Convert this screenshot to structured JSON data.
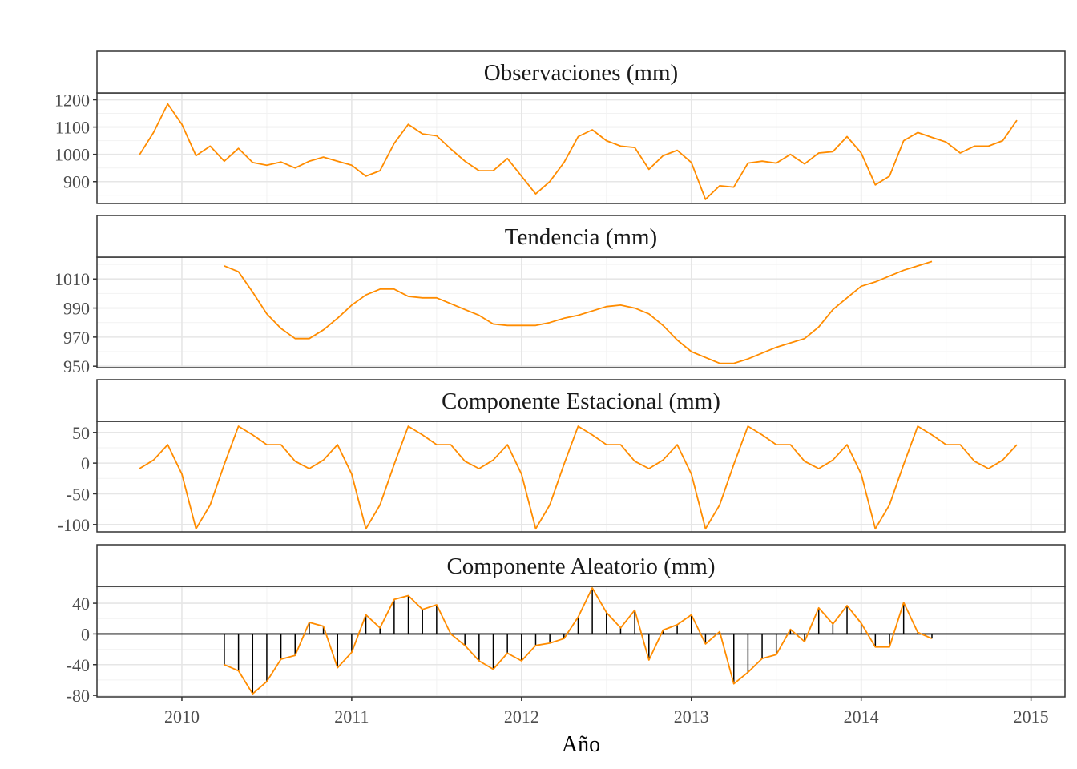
{
  "chart_data": {
    "type": "line",
    "xlabel": "Año",
    "x_ticks": [
      "2010",
      "2011",
      "2012",
      "2013",
      "2014",
      "2015"
    ],
    "x_range": [
      2009.5,
      2015.2
    ],
    "line_color": "#FF8C00",
    "panels": [
      {
        "title": "Observaciones (mm)",
        "x_start": 2009.75,
        "ylim": [
          820,
          1225
        ],
        "y_ticks": [
          "900",
          "1000",
          "1100",
          "1200"
        ],
        "values": [
          998,
          1080,
          1185,
          1110,
          995,
          1030,
          975,
          1022,
          970,
          960,
          972,
          950,
          975,
          990,
          975,
          960,
          920,
          940,
          1040,
          1110,
          1075,
          1068,
          1020,
          975,
          940,
          940,
          985,
          920,
          855,
          900,
          970,
          1065,
          1090,
          1050,
          1030,
          1025,
          945,
          995,
          1015,
          970,
          835,
          885,
          880,
          968,
          975,
          968,
          1000,
          965,
          1005,
          1010,
          1065,
          1005,
          888,
          920,
          1050,
          1080,
          1062,
          1045,
          1005,
          1030,
          1030,
          1050,
          1125
        ]
      },
      {
        "title": "Tendencia (mm)",
        "x_start": 2010.25,
        "ylim": [
          949,
          1025
        ],
        "y_ticks": [
          "950",
          "970",
          "990",
          "1010"
        ],
        "values": [
          1019,
          1015,
          1001,
          986,
          976,
          969,
          969,
          975,
          983,
          992,
          999,
          1003,
          1003,
          998,
          997,
          997,
          993,
          989,
          985,
          979,
          978,
          978,
          978,
          980,
          983,
          985,
          988,
          991,
          992,
          990,
          986,
          978,
          968,
          960,
          956,
          952,
          952,
          955,
          959,
          963,
          966,
          969,
          977,
          989,
          997,
          1005,
          1008,
          1012,
          1016,
          1019,
          1022
        ]
      },
      {
        "title": "Componente Estacional (mm)",
        "x_start": 2009.75,
        "ylim": [
          -112,
          68
        ],
        "y_ticks": [
          "-100",
          "-50",
          "0",
          "50"
        ],
        "values": [
          -9,
          5,
          30,
          -18,
          -107,
          -68,
          -2,
          60,
          46,
          30,
          30,
          3,
          -9,
          5,
          30,
          -18,
          -107,
          -68,
          -2,
          60,
          46,
          30,
          30,
          3,
          -9,
          5,
          30,
          -18,
          -107,
          -68,
          -2,
          60,
          46,
          30,
          30,
          3,
          -9,
          5,
          30,
          -18,
          -107,
          -68,
          -2,
          60,
          46,
          30,
          30,
          3,
          -9,
          5,
          30,
          -18,
          -107,
          -68,
          -2,
          60,
          46,
          30,
          30,
          3,
          -9,
          5,
          30
        ]
      },
      {
        "title": "Componente Aleatorio (mm)",
        "x_start": 2010.25,
        "ylim": [
          -82,
          62
        ],
        "y_ticks": [
          "-80",
          "-40",
          "0",
          "40"
        ],
        "values": [
          -40,
          -48,
          -78,
          -62,
          -33,
          -28,
          15,
          10,
          -44,
          -24,
          25,
          8,
          45,
          50,
          32,
          38,
          0,
          -15,
          -35,
          -46,
          -25,
          -35,
          -15,
          -12,
          -6,
          22,
          60,
          28,
          8,
          31,
          -34,
          5,
          12,
          25,
          -13,
          3,
          -65,
          -50,
          -32,
          -27,
          6,
          -10,
          34,
          13,
          37,
          14,
          -17,
          -17,
          41,
          2,
          -6
        ]
      }
    ]
  }
}
